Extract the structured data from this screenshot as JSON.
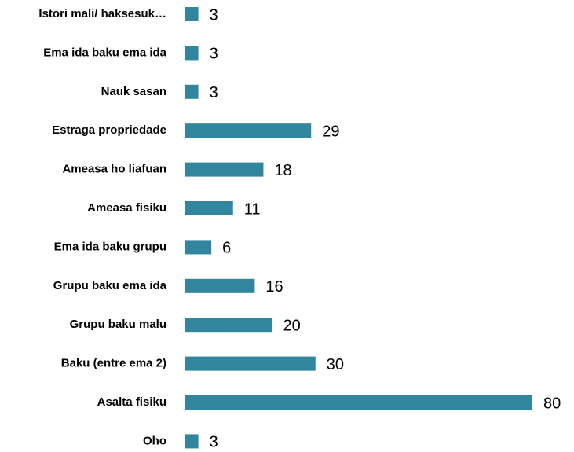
{
  "chart_data": {
    "type": "bar",
    "orientation": "horizontal",
    "categories": [
      "Istori mali/ haksesuk…",
      "Ema ida baku ema ida",
      "Nauk sasan",
      "Estraga propriedade",
      "Ameasa ho liafuan",
      "Ameasa fisiku",
      "Ema ida baku grupu",
      "Grupu baku ema ida",
      "Grupu baku malu",
      "Baku (entre ema 2)",
      "Asalta fisiku",
      "Oho"
    ],
    "values": [
      3,
      3,
      3,
      29,
      18,
      11,
      6,
      16,
      20,
      30,
      80,
      3
    ],
    "color": "#31859c"
  }
}
